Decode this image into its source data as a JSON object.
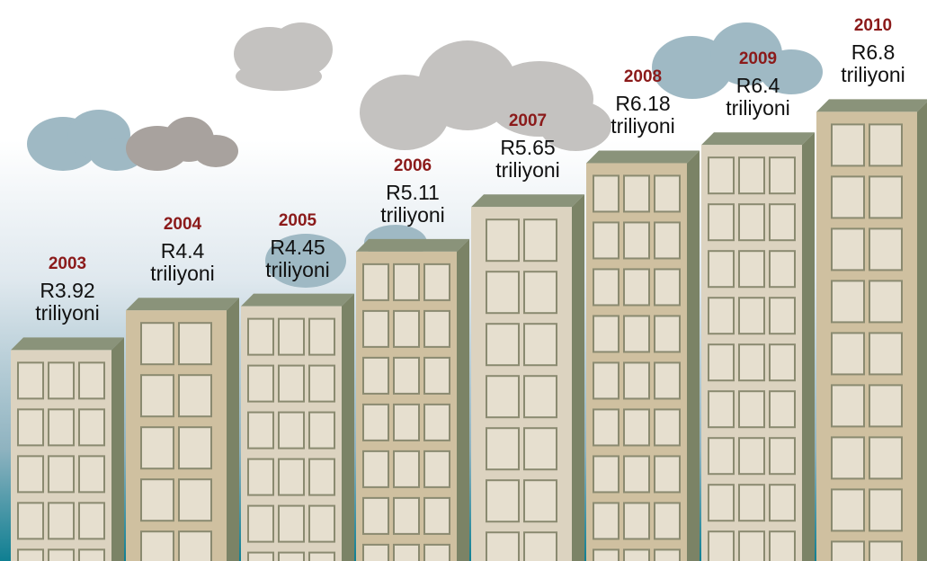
{
  "chart_data": {
    "type": "bar",
    "categories": [
      "2003",
      "2004",
      "2005",
      "2006",
      "2007",
      "2008",
      "2009",
      "2010"
    ],
    "values": [
      3.92,
      4.4,
      4.45,
      5.11,
      5.65,
      6.18,
      6.4,
      6.8
    ],
    "value_labels": [
      "R3.92 triliyoni",
      "R4.4 triliyoni",
      "R4.45 triliyoni",
      "R5.11 triliyoni",
      "R5.65 triliyoni",
      "R6.18 triliyoni",
      "R6.4 triliyoni",
      "R6.8 triliyoni"
    ],
    "color": "#dcd3c0"
  }
}
